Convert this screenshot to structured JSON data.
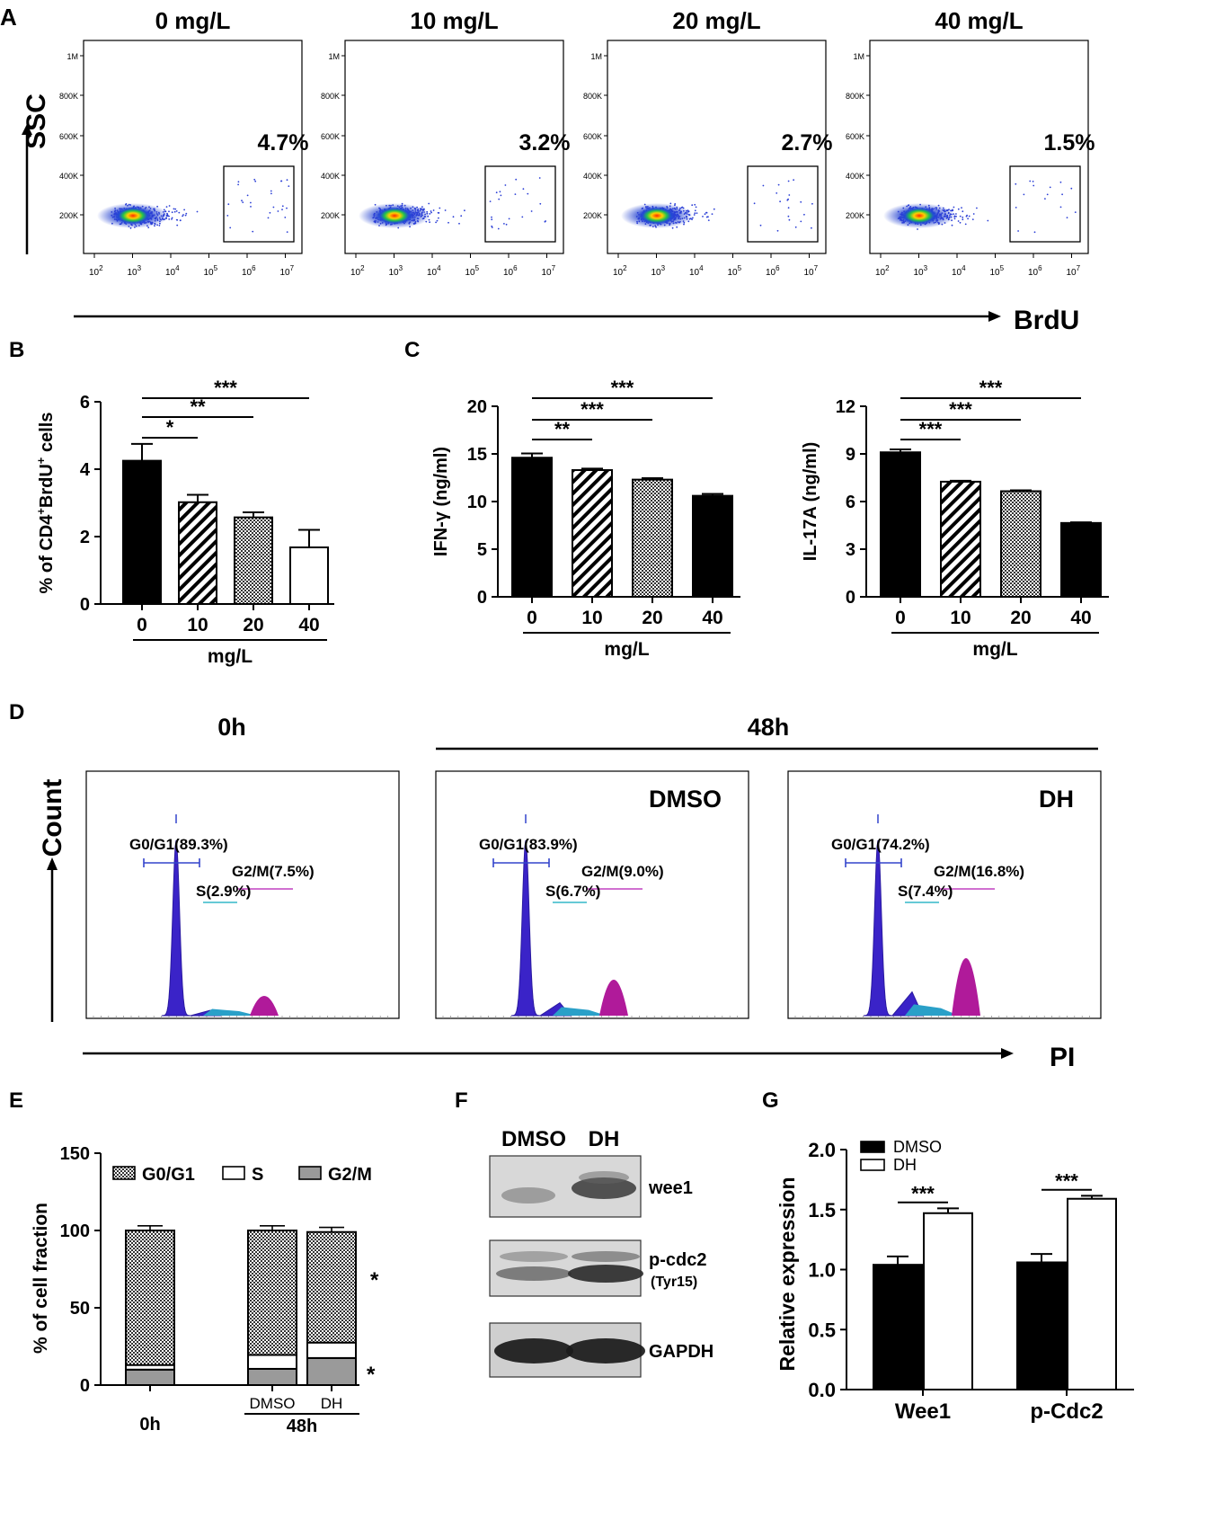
{
  "panel_letters": [
    "A",
    "B",
    "C",
    "D",
    "E",
    "F",
    "G"
  ],
  "panel_a": {
    "plots": [
      {
        "title": "0 mg/L",
        "gate_pct": "4.7%"
      },
      {
        "title": "10 mg/L",
        "gate_pct": "3.2%"
      },
      {
        "title": "20 mg/L",
        "gate_pct": "2.7%"
      },
      {
        "title": "40 mg/L",
        "gate_pct": "1.5%"
      }
    ],
    "y_ticks": [
      "1M",
      "800K",
      "600K",
      "400K",
      "200K"
    ],
    "x_ticks": [
      {
        "base": "10",
        "exp": "2"
      },
      {
        "base": "10",
        "exp": "3"
      },
      {
        "base": "10",
        "exp": "4"
      },
      {
        "base": "10",
        "exp": "5"
      },
      {
        "base": "10",
        "exp": "6"
      },
      {
        "base": "10",
        "exp": "7"
      }
    ],
    "ylabel": "SSC",
    "xlabel": "BrdU"
  },
  "chart_data": [
    {
      "panel": "B",
      "type": "bar",
      "ylabel_parts": [
        "% of CD4",
        "+",
        "BrdU",
        "+",
        " cells"
      ],
      "xlabel": "mg/L",
      "categories": [
        "0",
        "10",
        "20",
        "40"
      ],
      "values": [
        4.25,
        3.02,
        2.57,
        1.68
      ],
      "errors": [
        0.5,
        0.22,
        0.15,
        0.52
      ],
      "fills": [
        "black",
        "diagonal",
        "checker",
        "white"
      ],
      "ylim": [
        0,
        6
      ],
      "yticks": [
        "0",
        "2",
        "4",
        "6"
      ],
      "significance": [
        {
          "from": 0,
          "to": 1,
          "label": "*"
        },
        {
          "from": 0,
          "to": 2,
          "label": "**"
        },
        {
          "from": 0,
          "to": 3,
          "label": "***"
        }
      ]
    },
    {
      "panel": "C-left",
      "type": "bar",
      "ylabel": "IFN-γ (ng/ml)",
      "xlabel": "mg/L",
      "categories": [
        "0",
        "10",
        "20",
        "40"
      ],
      "values": [
        14.6,
        13.3,
        12.3,
        10.6
      ],
      "errors": [
        0.45,
        0.15,
        0.15,
        0.2
      ],
      "fills": [
        "black",
        "diagonal",
        "checker",
        "black"
      ],
      "ylim": [
        0,
        20
      ],
      "yticks": [
        "0",
        "5",
        "10",
        "15",
        "20"
      ],
      "significance": [
        {
          "from": 0,
          "to": 1,
          "label": "**"
        },
        {
          "from": 0,
          "to": 2,
          "label": "***"
        },
        {
          "from": 0,
          "to": 3,
          "label": "***"
        }
      ]
    },
    {
      "panel": "C-right",
      "type": "bar",
      "ylabel": "IL-17A (ng/ml)",
      "xlabel": "mg/L",
      "categories": [
        "0",
        "10",
        "20",
        "40"
      ],
      "values": [
        9.1,
        7.25,
        6.65,
        4.65
      ],
      "errors": [
        0.18,
        0.06,
        0.06,
        0.04
      ],
      "fills": [
        "black",
        "diagonal",
        "checker",
        "black"
      ],
      "ylim": [
        0,
        12
      ],
      "yticks": [
        "0",
        "3",
        "6",
        "9",
        "12"
      ],
      "significance": [
        {
          "from": 0,
          "to": 1,
          "label": "***"
        },
        {
          "from": 0,
          "to": 2,
          "label": "***"
        },
        {
          "from": 0,
          "to": 3,
          "label": "***"
        }
      ]
    },
    {
      "panel": "D",
      "type": "histogram",
      "ylabel": "Count",
      "xlabel": "PI",
      "time_labels": [
        "0h",
        "48h"
      ],
      "plots": [
        {
          "title": "",
          "g0g1": "G0/G1(89.3%)",
          "s": "S(2.9%)",
          "g2m": "G2/M(7.5%)",
          "g0g1_value": 89.3,
          "s_value": 2.9,
          "g2m_value": 7.5
        },
        {
          "title": "DMSO",
          "g0g1": "G0/G1(83.9%)",
          "s": "S(6.7%)",
          "g2m": "G2/M(9.0%)",
          "g0g1_value": 83.9,
          "s_value": 6.7,
          "g2m_value": 9.0
        },
        {
          "title": "DH",
          "g0g1": "G0/G1(74.2%)",
          "s": "S(7.4%)",
          "g2m": "G2/M(16.8%)",
          "g0g1_value": 74.2,
          "s_value": 7.4,
          "g2m_value": 16.8
        }
      ]
    },
    {
      "panel": "E",
      "type": "stacked-bar",
      "ylabel": "% of cell fraction",
      "categories": [
        "0h",
        "DMSO",
        "DH"
      ],
      "group_label": "48h",
      "series": [
        {
          "name": "G2/M",
          "values": [
            10.0,
            10.5,
            17.5
          ],
          "fill": "gray"
        },
        {
          "name": "S",
          "values": [
            3.0,
            9.0,
            10.0
          ],
          "fill": "white"
        },
        {
          "name": "G0/G1",
          "values": [
            87.0,
            80.5,
            71.5
          ],
          "fill": "checker"
        }
      ],
      "legend_order": [
        "G0/G1",
        "S",
        "G2/M"
      ],
      "ylim": [
        0,
        150
      ],
      "yticks": [
        "0",
        "50",
        "100",
        "150"
      ],
      "significance": [
        "*",
        "*"
      ]
    },
    {
      "panel": "G",
      "type": "bar",
      "ylabel": "Relative expression",
      "categories": [
        "Wee1",
        "p-Cdc2"
      ],
      "series": [
        {
          "name": "DMSO",
          "values": [
            1.04,
            1.06
          ],
          "errors": [
            0.07,
            0.07
          ],
          "fill": "black"
        },
        {
          "name": "DH",
          "values": [
            1.47,
            1.59
          ],
          "errors": [
            0.04,
            0.025
          ],
          "fill": "white"
        }
      ],
      "ylim": [
        0,
        2.0
      ],
      "yticks": [
        "0.0",
        "0.5",
        "1.0",
        "1.5",
        "2.0"
      ],
      "significance": [
        "***",
        "***"
      ]
    }
  ],
  "panel_f": {
    "lanes": [
      "DMSO",
      "DH"
    ],
    "bands": [
      {
        "label": "wee1",
        "sublabel": ""
      },
      {
        "label": "p-cdc2",
        "sublabel": "(Tyr15)"
      },
      {
        "label": "GAPDH",
        "sublabel": ""
      }
    ]
  }
}
